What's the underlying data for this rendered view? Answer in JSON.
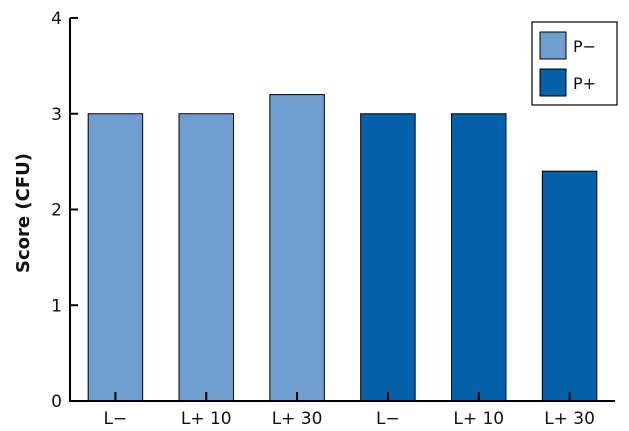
{
  "chart_data": {
    "type": "bar",
    "title": "",
    "xlabel": "",
    "ylabel": "Score (CFU)",
    "ylim": [
      0,
      4
    ],
    "yticks": [
      0,
      1,
      2,
      3,
      4
    ],
    "grid": false,
    "legend_position": "top-right",
    "categories": [
      "L−",
      "L+ 10",
      "L+ 30",
      "L−",
      "L+ 10",
      "L+ 30"
    ],
    "series": [
      {
        "name": "P−",
        "color": "#6f9ed0",
        "values": [
          3.0,
          3.0,
          3.2,
          null,
          null,
          null
        ]
      },
      {
        "name": "P+",
        "color": "#0460a8",
        "values": [
          null,
          null,
          null,
          3.0,
          3.0,
          2.4
        ]
      }
    ]
  }
}
